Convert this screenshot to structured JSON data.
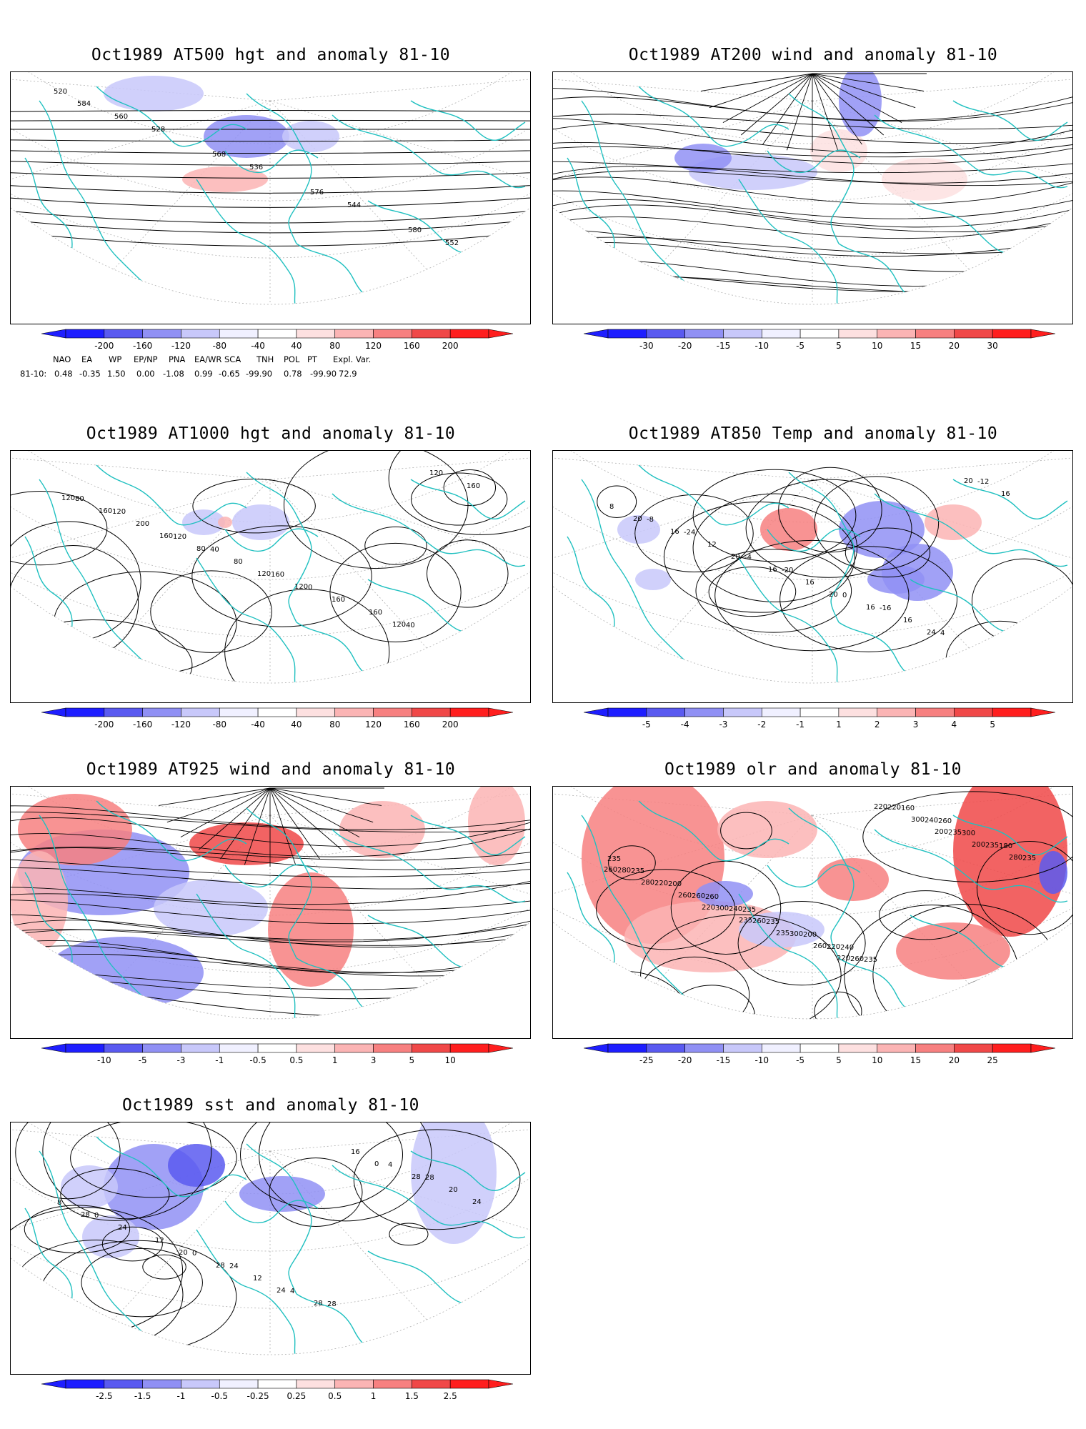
{
  "panels": [
    {
      "id": "p1",
      "title": "Oct1989 AT500 hgt and anomaly 81-10",
      "contour_labels": [
        "520",
        "528",
        "536",
        "544",
        "552",
        "560",
        "568",
        "576",
        "580",
        "584"
      ],
      "colorbar": {
        "labels": [
          "-200",
          "-160",
          "-120",
          "-80",
          "-40",
          "40",
          "80",
          "120",
          "160",
          "200"
        ],
        "colors": [
          "#1e1eff",
          "#5a5af0",
          "#9090f4",
          "#c8c8fa",
          "#f0f0ff",
          "#ffffff",
          "#fde0e0",
          "#fbb4b4",
          "#f78080",
          "#f04848",
          "#ff1e1e"
        ]
      }
    },
    {
      "id": "p2",
      "title": "Oct1989 AT200 wind and anomaly 81-10",
      "contour_labels": [],
      "colorbar": {
        "labels": [
          "-30",
          "-20",
          "-15",
          "-10",
          "-5",
          "5",
          "10",
          "15",
          "20",
          "30"
        ],
        "colors": [
          "#1e1eff",
          "#5a5af0",
          "#9090f4",
          "#c8c8fa",
          "#f0f0ff",
          "#ffffff",
          "#fde0e0",
          "#fbb4b4",
          "#f78080",
          "#f04848",
          "#ff1e1e"
        ]
      }
    },
    {
      "id": "p3",
      "title": "Oct1989 AT1000 hgt and anomaly 81-10",
      "contour_labels": [
        "120",
        "40",
        "0",
        "40",
        "80",
        "120",
        "160",
        "160",
        "160",
        "200",
        "80",
        "160",
        "120",
        "160",
        "80",
        "120",
        "120",
        "120",
        "160",
        "120"
      ],
      "colorbar": {
        "labels": [
          "-200",
          "-160",
          "-120",
          "-80",
          "-40",
          "40",
          "80",
          "120",
          "160",
          "200"
        ],
        "colors": [
          "#1e1eff",
          "#5a5af0",
          "#9090f4",
          "#c8c8fa",
          "#f0f0ff",
          "#ffffff",
          "#fde0e0",
          "#fbb4b4",
          "#f78080",
          "#f04848",
          "#ff1e1e"
        ]
      }
    },
    {
      "id": "p4",
      "title": "Oct1989 AT850 Temp and anomaly 81-10",
      "contour_labels": [
        "-24",
        "-20",
        "-16",
        "-12",
        "-8",
        "-4",
        "0",
        "4",
        "8",
        "12",
        "16",
        "16",
        "16",
        "16",
        "16",
        "16",
        "20",
        "20",
        "20",
        "20",
        "24"
      ],
      "colorbar": {
        "labels": [
          "-5",
          "-4",
          "-3",
          "-2",
          "-1",
          "1",
          "2",
          "3",
          "4",
          "5"
        ],
        "colors": [
          "#1e1eff",
          "#5a5af0",
          "#9090f4",
          "#c8c8fa",
          "#f0f0ff",
          "#ffffff",
          "#fde0e0",
          "#fbb4b4",
          "#f78080",
          "#f04848",
          "#ff1e1e"
        ]
      }
    },
    {
      "id": "p5",
      "title": "Oct1989 AT925 wind and anomaly 81-10",
      "contour_labels": [],
      "colorbar": {
        "labels": [
          "-10",
          "-5",
          "-3",
          "-1",
          "-0.5",
          "0.5",
          "1",
          "3",
          "5",
          "10"
        ],
        "colors": [
          "#1e1eff",
          "#5a5af0",
          "#9090f4",
          "#c8c8fa",
          "#f0f0ff",
          "#ffffff",
          "#fde0e0",
          "#fbb4b4",
          "#f78080",
          "#f04848",
          "#ff1e1e"
        ]
      }
    },
    {
      "id": "p6",
      "title": "Oct1989 olr and anomaly 81-10",
      "contour_labels": [
        "235",
        "240",
        "260",
        "235",
        "260",
        "200",
        "160",
        "180",
        "200",
        "235",
        "235",
        "300",
        "235",
        "240",
        "220",
        "240",
        "235",
        "260",
        "300",
        "220",
        "235",
        "220",
        "260",
        "260",
        "235",
        "280",
        "300",
        "260",
        "300",
        "280",
        "260",
        "235",
        "220",
        "200",
        "280",
        "235",
        "220",
        "200",
        "260",
        "220"
      ],
      "colorbar": {
        "labels": [
          "-25",
          "-20",
          "-15",
          "-10",
          "-5",
          "5",
          "10",
          "15",
          "20",
          "25"
        ],
        "colors": [
          "#1e1eff",
          "#5a5af0",
          "#9090f4",
          "#c8c8fa",
          "#f0f0ff",
          "#ffffff",
          "#fde0e0",
          "#fbb4b4",
          "#f78080",
          "#f04848",
          "#ff1e1e"
        ]
      }
    },
    {
      "id": "p7",
      "title": "Oct1989 sst and anomaly 81-10",
      "contour_labels": [
        "24",
        "28",
        "28",
        "0",
        "0",
        "4",
        "4",
        "8",
        "12",
        "12",
        "16",
        "20",
        "24",
        "28",
        "28",
        "28",
        "28",
        "20",
        "24",
        "0",
        "24"
      ],
      "colorbar": {
        "labels": [
          "-2.5",
          "-1.5",
          "-1",
          "-0.5",
          "-0.25",
          "0.25",
          "0.5",
          "1",
          "1.5",
          "2.5"
        ],
        "colors": [
          "#1e1eff",
          "#5a5af0",
          "#9090f4",
          "#c8c8fa",
          "#f0f0ff",
          "#ffffff",
          "#fde0e0",
          "#fbb4b4",
          "#f78080",
          "#f04848",
          "#ff1e1e"
        ]
      }
    }
  ],
  "indices": {
    "names": [
      "NAO",
      "EA",
      "WP",
      "EP/NP",
      "PNA",
      "EA/WR",
      "SCA",
      "TNH",
      "POL",
      "PT",
      "Expl. Var."
    ],
    "row_label": "81-10:",
    "values": [
      "0.48",
      "-0.35",
      "1.50",
      "0.00",
      "-1.08",
      "0.99",
      "-0.65",
      "-99.90",
      "0.78",
      "-99.90",
      "72.9"
    ]
  },
  "colors": {
    "coastline": "#20c0c0",
    "contour": "#000000",
    "grid": "#b0b0b0"
  }
}
